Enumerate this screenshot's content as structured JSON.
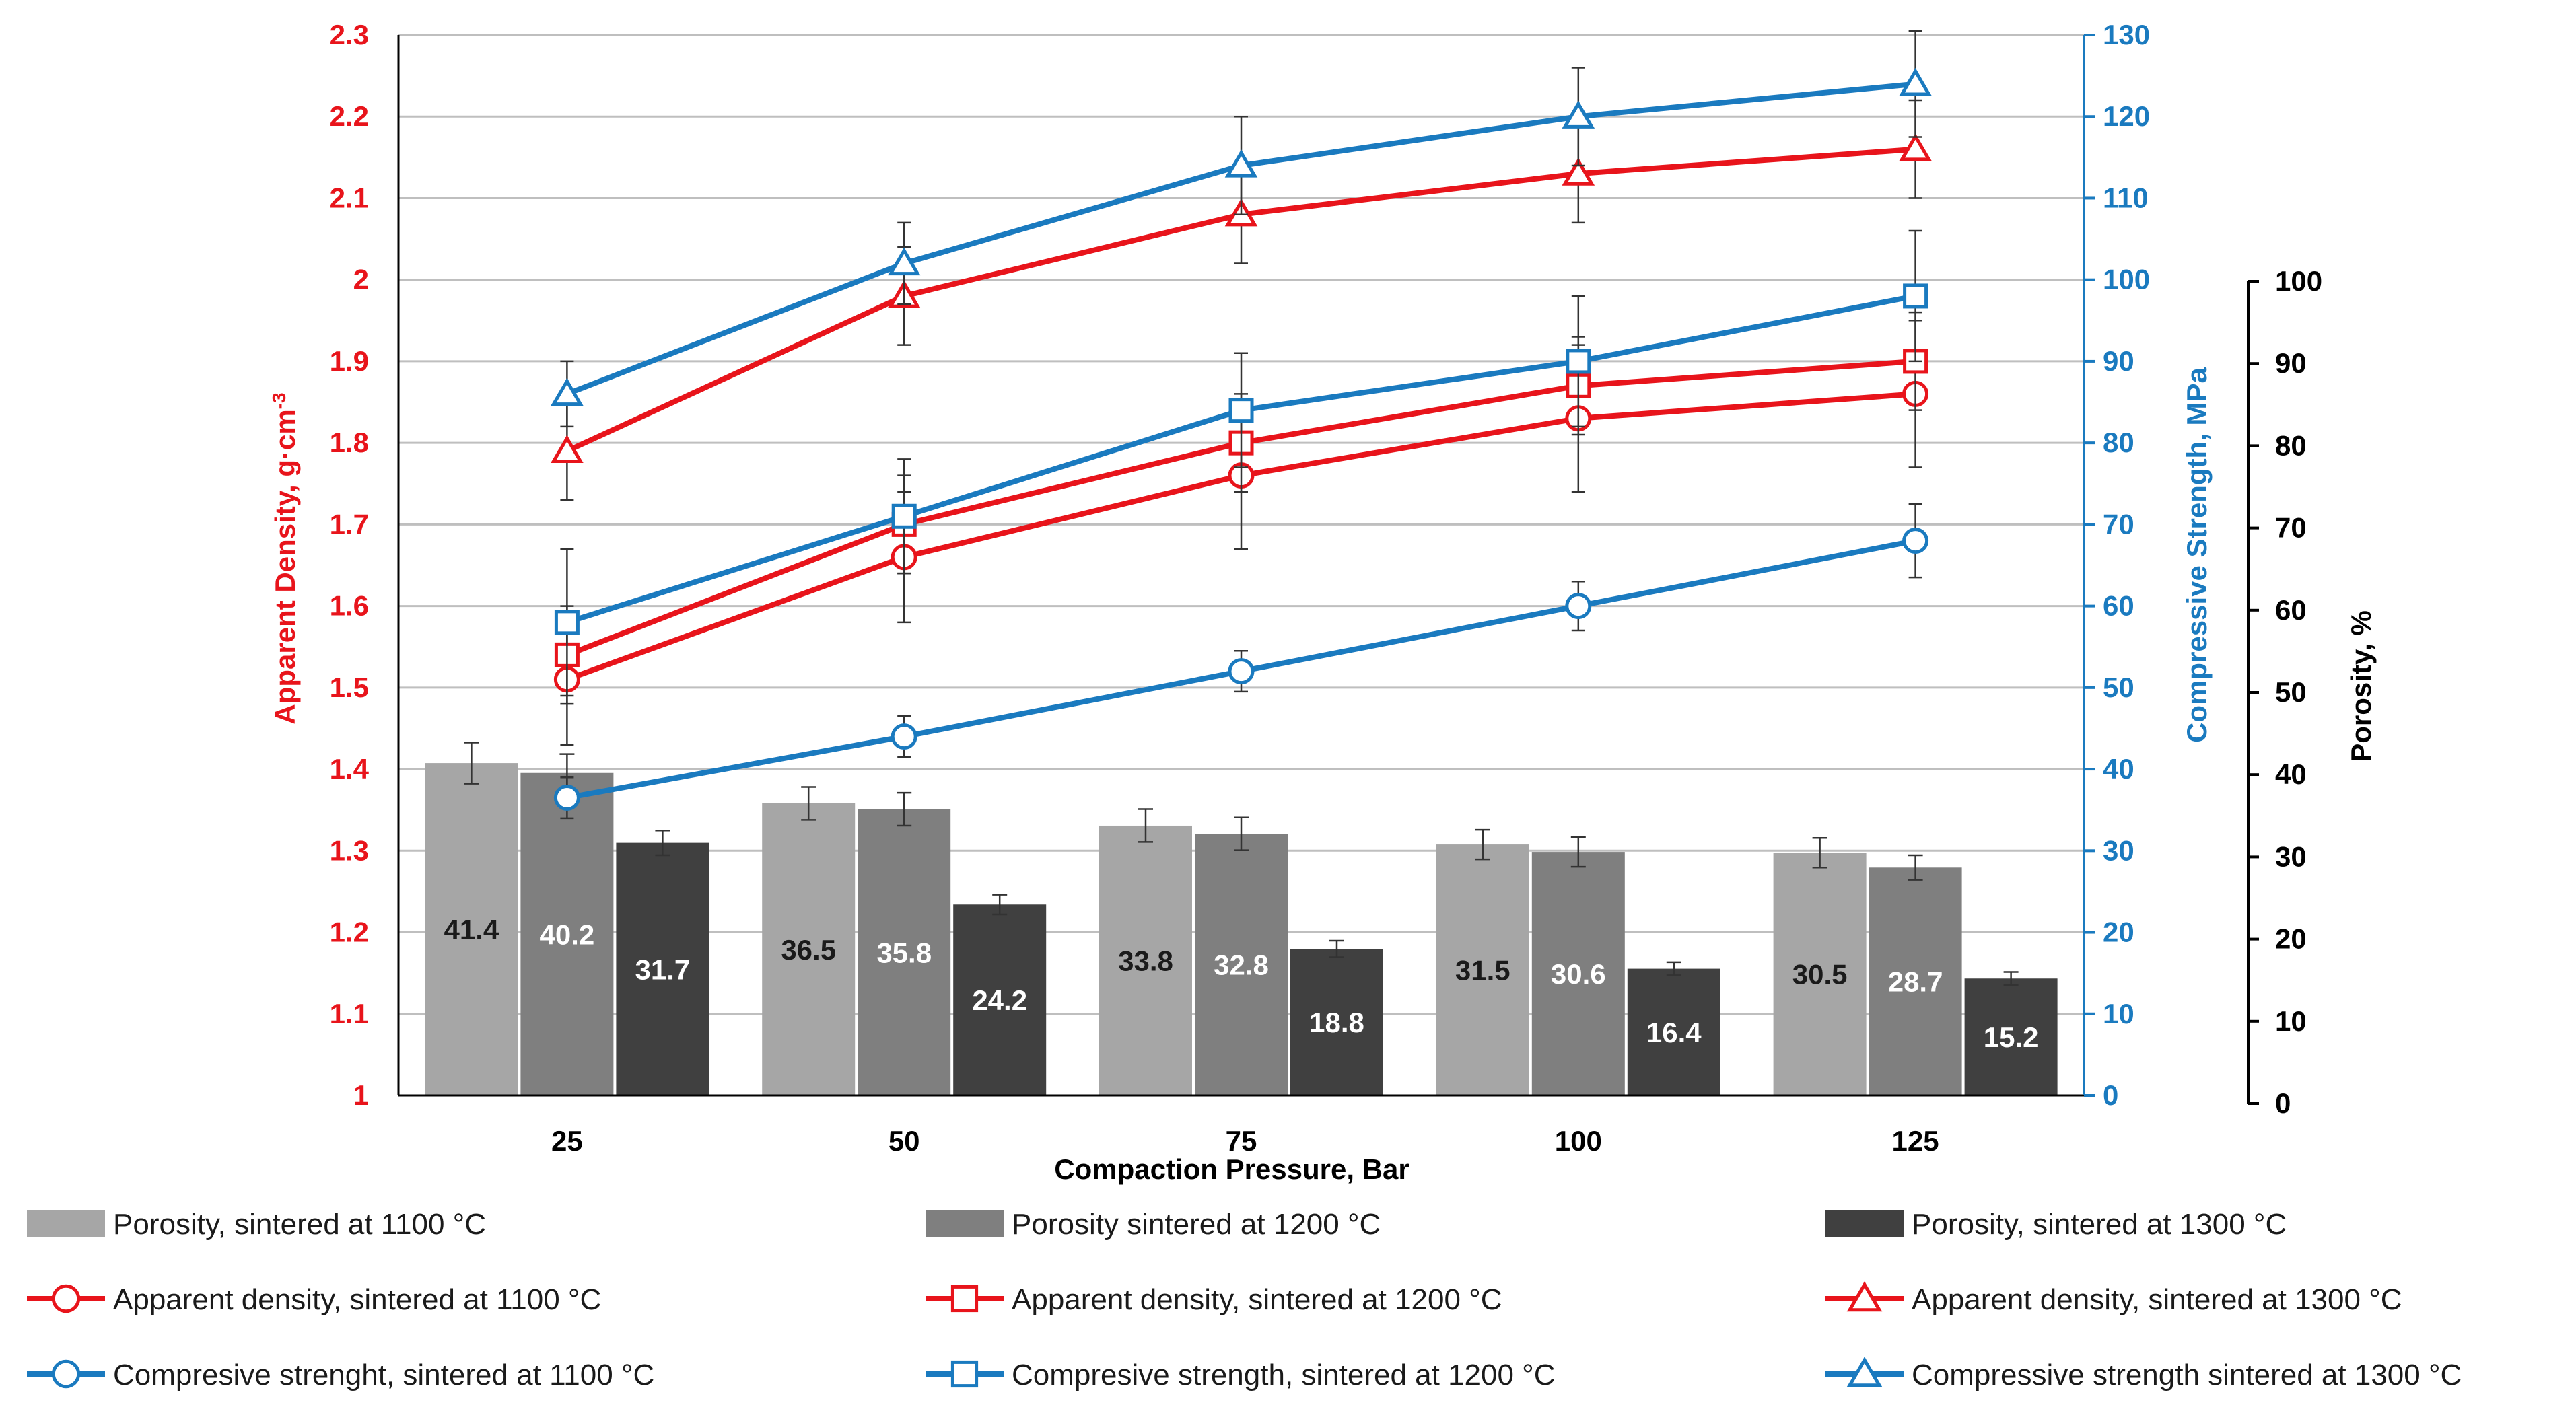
{
  "chart_data": {
    "type": "bar+line",
    "categories": [
      "25",
      "50",
      "75",
      "100",
      "125"
    ],
    "xlabel": "Compaction Pressure, Bar",
    "axes": {
      "density": {
        "label": "Apparent Density, g·cm",
        "label_sup": "-3",
        "range": [
          1,
          2.3
        ],
        "ticks": [
          "1",
          "1.1",
          "1.2",
          "1.3",
          "1.4",
          "1.5",
          "1.6",
          "1.7",
          "1.8",
          "1.9",
          "2",
          "2.1",
          "2.2",
          "2.3"
        ],
        "color": "#e8141b"
      },
      "strength": {
        "label": "Compressive Strength, MPa",
        "range": [
          0,
          130
        ],
        "ticks": [
          "0",
          "10",
          "20",
          "30",
          "40",
          "50",
          "60",
          "70",
          "80",
          "90",
          "100",
          "110",
          "120",
          "130"
        ],
        "color": "#1a7abf"
      },
      "porosity": {
        "label": "Porosity, %",
        "range": [
          0,
          100
        ],
        "ticks": [
          "0",
          "10",
          "20",
          "30",
          "40",
          "50",
          "60",
          "70",
          "80",
          "90",
          "100"
        ],
        "color": "#000000"
      }
    },
    "grid": true,
    "bars": [
      {
        "name": "Porosity, sintered at 1100 °C",
        "color": "#a6a6a6",
        "label_color": "#1a1a1a",
        "values": [
          41.4,
          36.5,
          33.8,
          31.5,
          30.5
        ],
        "labels": [
          "41.4",
          "36.5",
          "33.8",
          "31.5",
          "30.5"
        ],
        "errors": [
          2.5,
          2.0,
          2.0,
          1.8,
          1.8
        ]
      },
      {
        "name": "Porosity sintered at 1200 °C",
        "color": "#7f7f7f",
        "label_color": "#ffffff",
        "values": [
          40.2,
          35.8,
          32.8,
          30.6,
          28.7
        ],
        "labels": [
          "40.2",
          "35.8",
          "32.8",
          "30.6",
          "28.7"
        ],
        "errors": [
          2.3,
          2.0,
          2.0,
          1.8,
          1.5
        ]
      },
      {
        "name": "Porosity, sintered at 1300 °C",
        "color": "#404040",
        "label_color": "#ffffff",
        "values": [
          31.7,
          24.2,
          18.8,
          16.4,
          15.2
        ],
        "labels": [
          "31.7",
          "24.2",
          "18.8",
          "16.4",
          "15.2"
        ],
        "errors": [
          1.5,
          1.2,
          1.0,
          0.8,
          0.8
        ]
      }
    ],
    "lines": [
      {
        "name": "Apparent density, sintered at 1100 °C",
        "axis": "density",
        "color": "#e8141b",
        "marker": "circle",
        "values": [
          1.51,
          1.66,
          1.76,
          1.83,
          1.86
        ],
        "errors": [
          0.08,
          0.08,
          0.09,
          0.09,
          0.09
        ]
      },
      {
        "name": "Apparent density, sintered at 1200 °C",
        "axis": "density",
        "color": "#e8141b",
        "marker": "square",
        "values": [
          1.54,
          1.7,
          1.8,
          1.87,
          1.9
        ],
        "errors": [
          0.06,
          0.06,
          0.06,
          0.06,
          0.06
        ]
      },
      {
        "name": "Apparent density, sintered at 1300 °C",
        "axis": "density",
        "color": "#e8141b",
        "marker": "triangle",
        "values": [
          1.79,
          1.98,
          2.08,
          2.13,
          2.16
        ],
        "errors": [
          0.06,
          0.06,
          0.06,
          0.06,
          0.06
        ]
      },
      {
        "name": "Compresive strenght, sintered at 1100 °C",
        "axis": "strength",
        "color": "#1a7abf",
        "marker": "circle",
        "values": [
          36.5,
          44.0,
          52.0,
          60.0,
          68.0
        ],
        "errors": [
          2.5,
          2.5,
          2.5,
          3.0,
          4.5
        ]
      },
      {
        "name": "Compresive strength, sintered at 1200 °C",
        "axis": "strength",
        "color": "#1a7abf",
        "marker": "square",
        "values": [
          58.0,
          71.0,
          84.0,
          90.0,
          98.0
        ],
        "errors": [
          9.0,
          7.0,
          7.0,
          8.0,
          8.0
        ]
      },
      {
        "name": "Compressive strength sintered at 1300 °C",
        "axis": "strength",
        "color": "#1a7abf",
        "marker": "triangle",
        "values": [
          86.0,
          102.0,
          114.0,
          120.0,
          124.0
        ],
        "errors": [
          4.0,
          5.0,
          6.0,
          6.0,
          6.5
        ]
      }
    ],
    "legend_position": "bottom"
  }
}
